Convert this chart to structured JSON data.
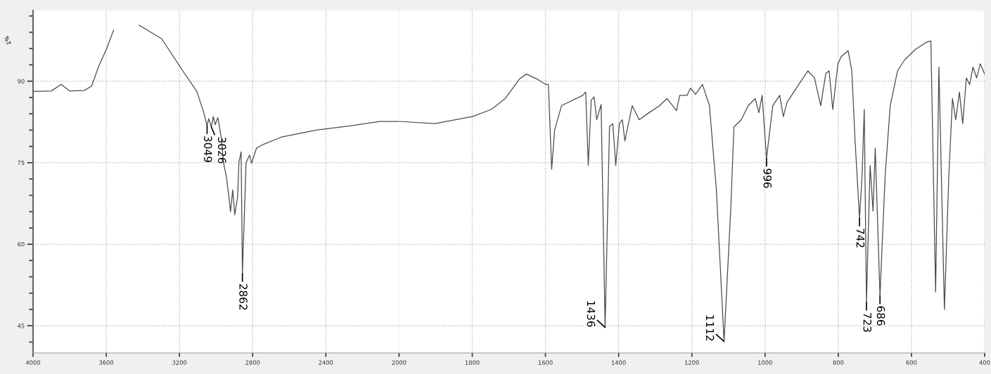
{
  "chart_data": [
    {
      "type": "line",
      "ylabel": "%T",
      "color": "#4a4a4a",
      "line_style": "solid",
      "grid": true,
      "legend": false,
      "xlim": [
        4000,
        2000
      ],
      "ylim": [
        40,
        103
      ],
      "xticks": [
        4000,
        3600,
        3200,
        2800,
        2400,
        2000
      ],
      "yticks": [
        {
          "value": 42,
          "label": null
        },
        45,
        {
          "value": 48,
          "label": null
        },
        {
          "value": 51,
          "label": null
        },
        {
          "value": 54,
          "label": null
        },
        {
          "value": 57,
          "label": null
        },
        60,
        {
          "value": 63,
          "label": null
        },
        {
          "value": 66,
          "label": null
        },
        {
          "value": 69,
          "label": null
        },
        {
          "value": 72,
          "label": null
        },
        75,
        {
          "value": 78,
          "label": null
        },
        {
          "value": 81,
          "label": null
        },
        {
          "value": 84,
          "label": null
        },
        {
          "value": 87,
          "label": null
        },
        90,
        {
          "value": 93,
          "label": null
        },
        {
          "value": 96,
          "label": null
        },
        {
          "value": 99,
          "label": null
        },
        {
          "value": 102,
          "label": null
        }
      ],
      "x": [
        4000,
        3900,
        3846,
        3800,
        3720,
        3680,
        3643,
        3600,
        3560,
        3460,
        3420,
        3297,
        3182,
        3105,
        3067,
        3049,
        3040,
        3026,
        3015,
        3005,
        2990,
        2970,
        2960,
        2944,
        2932,
        2921,
        2909,
        2898,
        2882,
        2875,
        2863,
        2856,
        2836,
        2817,
        2806,
        2779,
        2740,
        2644,
        2452,
        2260,
        2106,
        2000
      ],
      "values": [
        88.1,
        88.2,
        89.4,
        88.2,
        88.3,
        89.1,
        92.6,
        95.8,
        99.4,
        null,
        100.3,
        97.8,
        91.9,
        88.1,
        84.2,
        81.8,
        83.1,
        81.6,
        83.5,
        82.0,
        83.3,
        79.3,
        75.1,
        72.5,
        69.3,
        66,
        70,
        65.4,
        68.7,
        75.1,
        77,
        54.6,
        75,
        76.4,
        74.9,
        77.7,
        78.4,
        79.7,
        81,
        81.8,
        82.6,
        82.6
      ],
      "annotations": [
        {
          "text": "3049",
          "x": 3049,
          "y": 81.8
        },
        {
          "text": "3026",
          "x": 3026,
          "y": 81.6
        },
        {
          "text": "2862",
          "x": 2856,
          "y": 54.6
        }
      ]
    },
    {
      "type": "line",
      "color": "#4a4a4a",
      "line_style": "solid",
      "grid": true,
      "legend": false,
      "tick_labels": "x",
      "xlim": [
        2000,
        400
      ],
      "ylim": [
        40,
        103
      ],
      "xticks": [
        1800,
        1600,
        1400,
        1200,
        1000,
        800,
        600,
        400
      ],
      "yticks": [
        45,
        60,
        75,
        90
      ],
      "x": [
        2000,
        1902,
        1800,
        1748,
        1710,
        1671,
        1652,
        1623,
        1600,
        1592,
        1583,
        1575,
        1556,
        1498,
        1490,
        1483,
        1475,
        1467,
        1460,
        1448,
        1437,
        1425,
        1416,
        1408,
        1398,
        1390,
        1383,
        1363,
        1344,
        1317,
        1288,
        1268,
        1242,
        1233,
        1213,
        1204,
        1190,
        1171,
        1152,
        1133,
        1112,
        1094,
        1085,
        1065,
        1046,
        1027,
        1017,
        1008,
        996,
        979,
        960,
        950,
        940,
        902,
        883,
        865,
        848,
        834,
        825,
        815,
        801,
        792,
        773,
        763,
        754,
        742,
        735,
        729,
        723,
        713,
        705,
        699,
        686,
        672,
        658,
        638,
        619,
        590,
        561,
        547,
        534,
        525,
        510,
        498,
        488,
        479,
        469,
        460,
        450,
        441,
        432,
        422,
        412,
        400
      ],
      "values": [
        82.6,
        82.2,
        83.5,
        84.8,
        86.8,
        90.4,
        91.3,
        90.4,
        89.4,
        89.4,
        73.8,
        81,
        85.5,
        87.4,
        88,
        74.5,
        86.5,
        87.1,
        82.9,
        85.7,
        44.7,
        81.6,
        82.2,
        74.5,
        82.2,
        82.9,
        79,
        85.5,
        82.9,
        84.2,
        85.5,
        86.8,
        84.6,
        87.4,
        87.4,
        88.7,
        87.6,
        89.4,
        85.5,
        70,
        42.1,
        66.1,
        81.6,
        82.9,
        85.5,
        86.8,
        84.2,
        87.4,
        75.8,
        85.5,
        87.4,
        83.5,
        86.1,
        90,
        91.9,
        90.6,
        85.5,
        91.4,
        91.9,
        84.8,
        93.2,
        94.5,
        95.6,
        91.9,
        79,
        64.8,
        72.5,
        84.8,
        49.3,
        74.5,
        66.1,
        77.7,
        50.5,
        72.5,
        85.5,
        91.9,
        93.9,
        95.8,
        97.1,
        97.4,
        51.2,
        92.6,
        48,
        72.5,
        86.8,
        82.9,
        88,
        82.2,
        90.6,
        89.4,
        92.6,
        90.6,
        93.2,
        91.3
      ],
      "annotations": [
        {
          "text": "1436",
          "x": 1437,
          "y": 44.7
        },
        {
          "text": "1112",
          "x": 1112,
          "y": 42.1
        },
        {
          "text": "996",
          "x": 996,
          "y": 75.8
        },
        {
          "text": "742",
          "x": 742,
          "y": 64.8
        },
        {
          "text": "723",
          "x": 723,
          "y": 49.3
        },
        {
          "text": "686",
          "x": 686,
          "y": 50.5
        }
      ]
    }
  ]
}
